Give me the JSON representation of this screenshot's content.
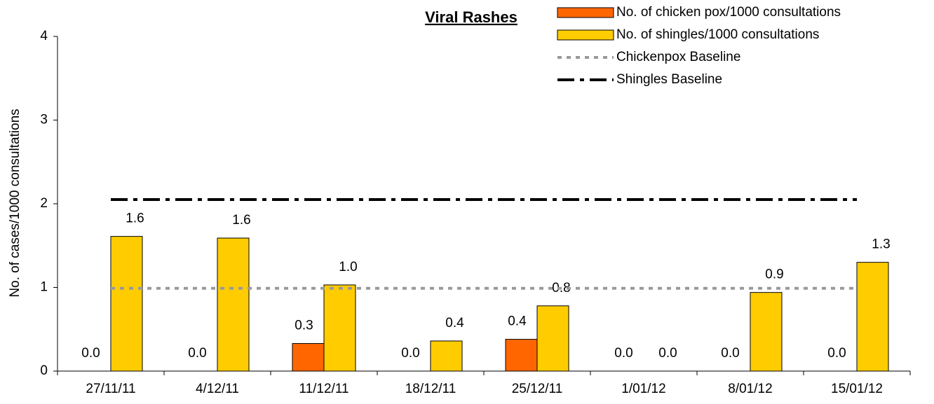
{
  "chart_data": {
    "type": "bar",
    "title": "Viral Rashes",
    "y_label": "No. of cases/1000 consultations",
    "categories": [
      "27/11/11",
      "4/12/11",
      "11/12/11",
      "18/12/11",
      "25/12/11",
      "1/01/12",
      "8/01/12",
      "15/01/12"
    ],
    "series": [
      {
        "name": "No. of chicken pox/1000 consultations",
        "type": "bar",
        "color": "#ff6600",
        "values": [
          0,
          0,
          0.33,
          0,
          0.38,
          0,
          0,
          0
        ],
        "value_labels": [
          "0.0",
          "0.0",
          "0.3",
          "0.0",
          "0.4",
          "0.0",
          "0.0",
          "0.0"
        ]
      },
      {
        "name": "No. of shingles/1000 consultations",
        "type": "bar",
        "color": "#ffcc00",
        "values": [
          1.61,
          1.59,
          1.03,
          0.36,
          0.78,
          0,
          0.94,
          1.3
        ],
        "value_labels": [
          "1.6",
          "1.6",
          "1.0",
          "0.4",
          "0.8",
          "0.0",
          "0.9",
          "1.3"
        ]
      },
      {
        "name": "Chickenpox Baseline",
        "type": "line",
        "color": "#999999",
        "dash": "6 7",
        "values": [
          0.99,
          0.99,
          0.99,
          0.99,
          0.99,
          0.99,
          0.99,
          0.99
        ]
      },
      {
        "name": "Shingles Baseline",
        "type": "line",
        "color": "#000000",
        "dash": "24 8 6 8",
        "values": [
          2.05,
          2.05,
          2.05,
          2.05,
          2.05,
          2.05,
          2.05,
          2.05
        ]
      }
    ],
    "ylim": [
      0,
      4
    ],
    "yticks": [
      0,
      1,
      2,
      3,
      4
    ],
    "grid": false,
    "legend": "top-right"
  }
}
